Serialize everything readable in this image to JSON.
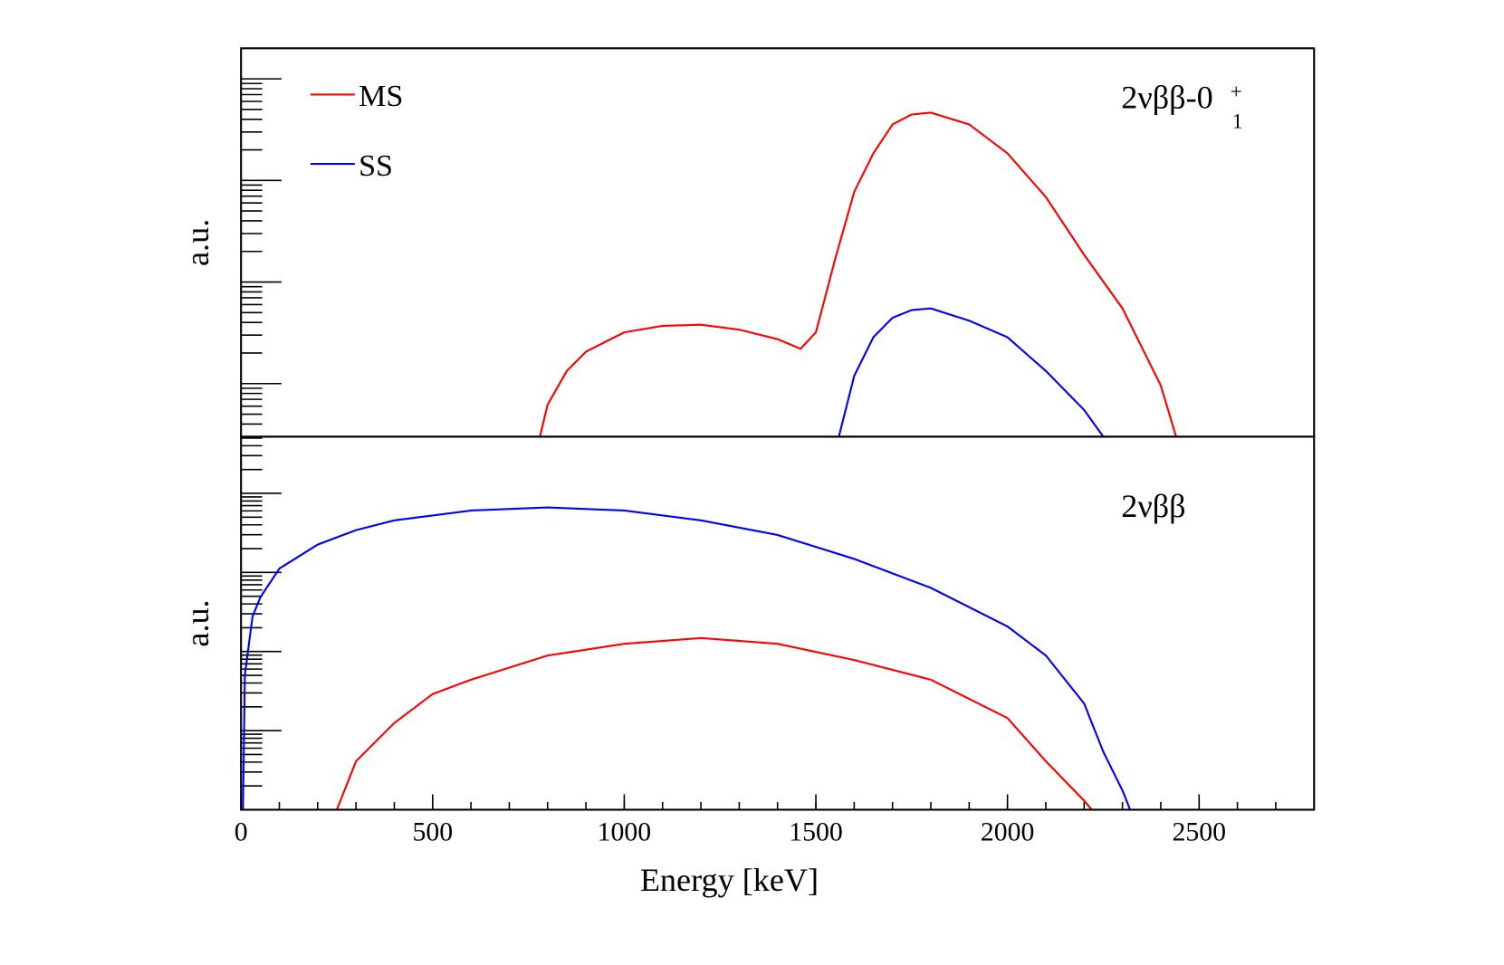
{
  "chart_data": [
    {
      "type": "line",
      "ylabel": "a.u.",
      "log_y": true,
      "annotation": {
        "text": "2νββ-0",
        "sup": "+",
        "sub": "1"
      },
      "legend": "upper left",
      "xlim": [
        0,
        2800
      ],
      "ylim": [
        3,
        20000
      ],
      "yticks": [
        10,
        100,
        1000,
        10000
      ],
      "series": [
        {
          "name": "MS",
          "color": "#ff0000",
          "x": [
            780,
            800,
            850,
            900,
            950,
            1000,
            1100,
            1200,
            1300,
            1400,
            1460,
            1500,
            1550,
            1600,
            1650,
            1700,
            1750,
            1800,
            1900,
            2000,
            2100,
            2200,
            2300,
            2400,
            2440
          ],
          "values": [
            3,
            6.2,
            13.3,
            20.6,
            25.7,
            32,
            37,
            38,
            34,
            27.4,
            22,
            32,
            166,
            769,
            1850,
            3560,
            4460,
            4650,
            3560,
            1850,
            687,
            185,
            55,
            9.6,
            3
          ]
        },
        {
          "name": "SS",
          "color": "#0000ff",
          "x": [
            1560,
            1600,
            1650,
            1700,
            1750,
            1800,
            1900,
            2000,
            2100,
            2200,
            2250
          ],
          "values": [
            3,
            11.9,
            28.6,
            44.5,
            53,
            55,
            41.6,
            28.6,
            13.3,
            5.5,
            3
          ]
        }
      ]
    },
    {
      "type": "line",
      "ylabel": "a.u.",
      "xlabel": "Energy [keV]",
      "log_y": true,
      "annotation": {
        "text": "2νββ"
      },
      "xlim": [
        0,
        2800
      ],
      "xticks": [
        0,
        500,
        1000,
        1500,
        2000,
        2500
      ],
      "ylim": [
        1,
        52000
      ],
      "yticks": [
        10,
        100,
        1000,
        10000
      ],
      "series": [
        {
          "name": "MS",
          "color": "#ff0000",
          "x": [
            250,
            300,
            400,
            500,
            600,
            800,
            1000,
            1200,
            1400,
            1600,
            1800,
            2000,
            2100,
            2200,
            2220
          ],
          "values": [
            1,
            4.1,
            12.5,
            29,
            44,
            89,
            125,
            148,
            125,
            78,
            44,
            14.4,
            4.1,
            1.3,
            1
          ]
        },
        {
          "name": "SS",
          "color": "#0000ff",
          "x": [
            5,
            10,
            30,
            50,
            100,
            200,
            300,
            400,
            500,
            600,
            800,
            1000,
            1200,
            1400,
            1600,
            1800,
            2000,
            2100,
            2200,
            2250,
            2300,
            2320
          ],
          "values": [
            1,
            51,
            275,
            483,
            1120,
            2250,
            3430,
            4550,
            5260,
            6060,
            6630,
            6060,
            4550,
            2980,
            1480,
            638,
            207,
            89,
            22,
            5.4,
            1.75,
            1
          ]
        }
      ]
    }
  ]
}
